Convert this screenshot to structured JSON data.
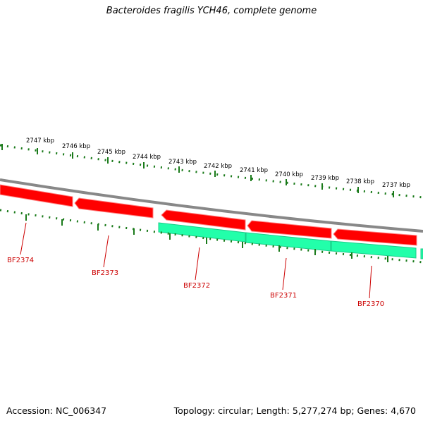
{
  "title": "Bacteroides fragilis YCH46, complete genome",
  "footer": {
    "accession": "Accession: NC_006347",
    "summary": "Topology: circular; Length: 5,277,274 bp; Genes: 4,670"
  },
  "ticks": {
    "labels": [
      "2747 kbp",
      "2746 kbp",
      "2745 kbp",
      "2744 kbp",
      "2743 kbp",
      "2742 kbp",
      "2741 kbp",
      "2740 kbp",
      "2739 kbp",
      "2738 kbp",
      "2737 kbp"
    ]
  },
  "genes": [
    {
      "name": "BF2374",
      "strand": "forward",
      "color": "#ff0000"
    },
    {
      "name": "BF2373",
      "strand": "forward",
      "color": "#ff0000"
    },
    {
      "name": "BF2372",
      "strand": "forward+reverse",
      "color": "#ff0000"
    },
    {
      "name": "BF2371",
      "strand": "forward+reverse",
      "color": "#ff0000"
    },
    {
      "name": "BF2370",
      "strand": "forward+reverse",
      "color": "#ff0000"
    }
  ],
  "colors": {
    "forward_gene": "#ff0000",
    "reverse_gene": "#22ffaa",
    "backbone": "#888888",
    "ticks": "#1a7a1a",
    "gene_label": "#cc0000"
  }
}
